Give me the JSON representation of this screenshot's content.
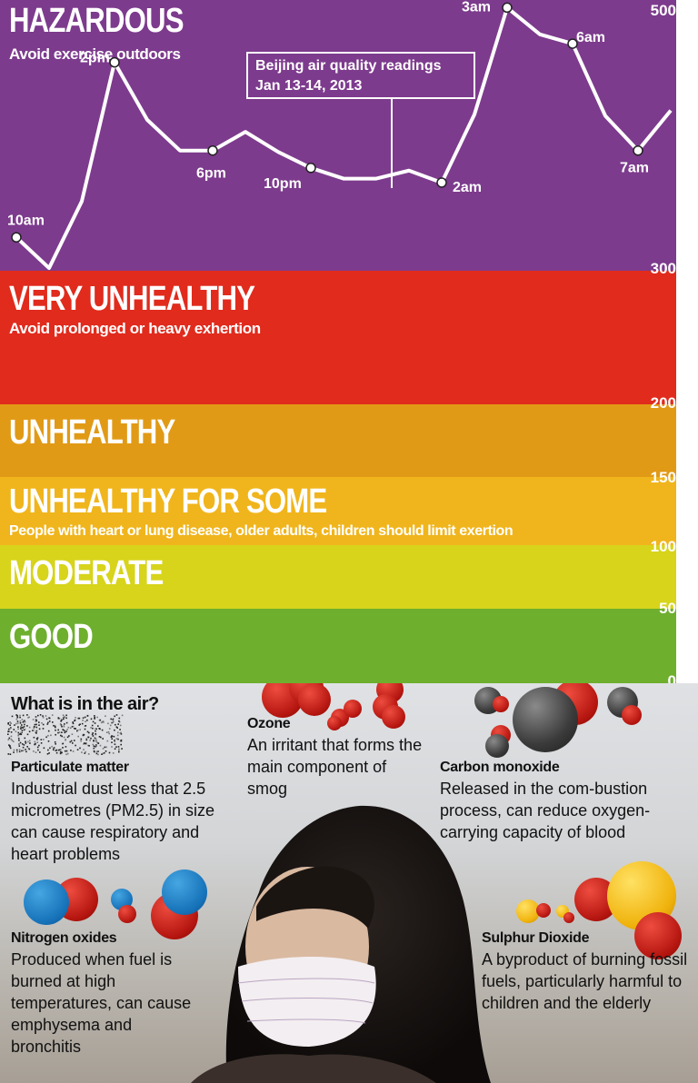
{
  "chart_data": {
    "type": "line",
    "title": "Beijing air quality readings",
    "subtitle": "Jan 13-14, 2013",
    "yticks": [
      0,
      50,
      100,
      150,
      200,
      300,
      500
    ],
    "bands": [
      {
        "label": "HAZARDOUS",
        "note": "Avoid exercise outdoors",
        "from": 300,
        "to": 500,
        "color": "#7d3b8d"
      },
      {
        "label": "VERY UNHEALTHY",
        "note": "Avoid prolonged or heavy exhertion",
        "from": 200,
        "to": 300,
        "color": "#e02b1d"
      },
      {
        "label": "UNHEALTHY",
        "note": "",
        "from": 150,
        "to": 200,
        "color": "#e19a16"
      },
      {
        "label": "UNHEALTHY FOR SOME",
        "note": "People with heart or lung disease, older adults, children should limit exertion",
        "from": 100,
        "to": 150,
        "color": "#f0b51c"
      },
      {
        "label": "MODERATE",
        "note": "",
        "from": 50,
        "to": 100,
        "color": "#d7d41b"
      },
      {
        "label": "GOOD",
        "note": "",
        "from": 0,
        "to": 50,
        "color": "#6eaf2e"
      }
    ],
    "series": [
      {
        "points": [
          {
            "v": 325,
            "label": "10am"
          },
          {
            "v": 302
          },
          {
            "v": 352
          },
          {
            "v": 456,
            "label": "2pm"
          },
          {
            "v": 413
          },
          {
            "v": 390
          },
          {
            "v": 390,
            "label": "6pm"
          },
          {
            "v": 404
          },
          {
            "v": 389
          },
          {
            "v": 377,
            "label": "10pm"
          },
          {
            "v": 369
          },
          {
            "v": 369
          },
          {
            "v": 375
          },
          {
            "v": 366,
            "label": "2am"
          },
          {
            "v": 417
          },
          {
            "v": 497,
            "label": "3am"
          },
          {
            "v": 477
          },
          {
            "v": 470,
            "label": "6am"
          },
          {
            "v": 416
          },
          {
            "v": 390,
            "label": "7am"
          },
          {
            "v": 420
          }
        ]
      }
    ]
  },
  "facts": {
    "title": "What is in the air?",
    "particulate": {
      "head": "Particulate matter",
      "body": "Industrial dust less that 2.5 micrometres (PM2.5) in size can cause respiratory and heart problems"
    },
    "ozone": {
      "head": "Ozone",
      "body": "An irritant that forms the main component of smog"
    },
    "carbon": {
      "head": "Carbon monoxide",
      "body": "Released in the com-bustion process, can reduce oxygen-carrying capacity of blood"
    },
    "nitrogen": {
      "head": "Nitrogen oxides",
      "body": "Produced when fuel is burned at high temperatures, can cause emphysema and bronchitis"
    },
    "sulphur": {
      "head": "Sulphur Dioxide",
      "body": "A byproduct of burning fossil fuels, particularly harmful to children and the elderly"
    }
  }
}
